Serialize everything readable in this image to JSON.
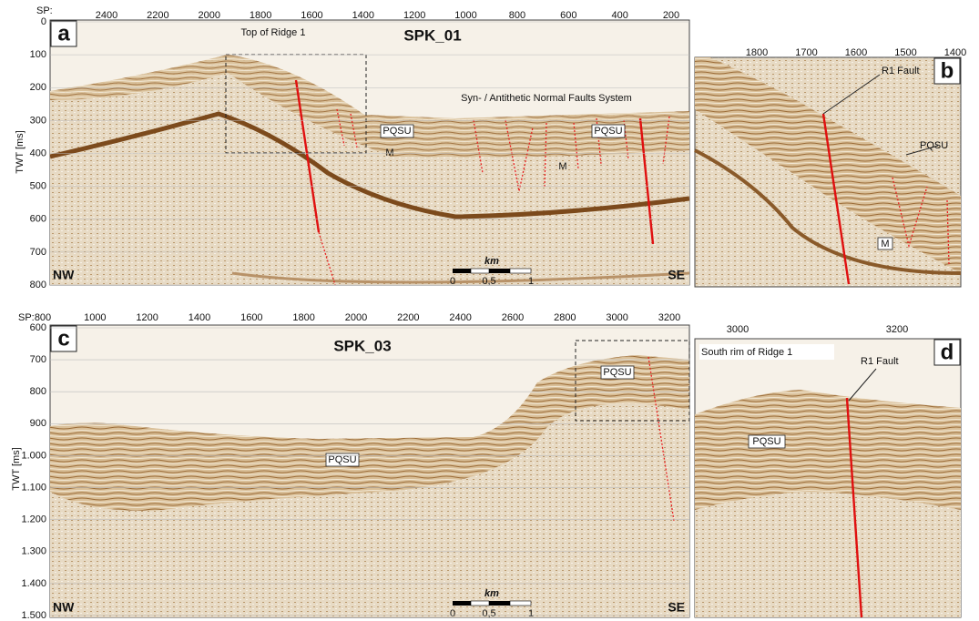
{
  "panels": [
    {
      "letter": "a",
      "title": "SPK_01",
      "sp_label": "SP:",
      "sp_ticks": [
        "2400",
        "2200",
        "2000",
        "1800",
        "1600",
        "1400",
        "1200",
        "1000",
        "800",
        "600",
        "400",
        "200"
      ],
      "twt_label": "TWT [ms]",
      "twt_ticks": [
        "0",
        "100",
        "200",
        "300",
        "400",
        "500",
        "600",
        "700",
        "800"
      ],
      "annotations": [
        "Top of Ridge 1",
        "Syn- / Antithetic Normal Faults System",
        "PQSU",
        "PQSU",
        "M",
        "M"
      ],
      "left_label": "NW",
      "right_label": "SE",
      "scale": {
        "unit": "km",
        "ticks": [
          "0",
          "0,5",
          "1"
        ]
      }
    },
    {
      "letter": "b",
      "sp_ticks": [
        "1800",
        "1700",
        "1600",
        "1500",
        "1400"
      ],
      "annotations": [
        "R1 Fault",
        "PQSU",
        "M"
      ]
    },
    {
      "letter": "c",
      "title": "SPK_03",
      "sp_label": "SP:",
      "sp_ticks": [
        "800",
        "1000",
        "1200",
        "1400",
        "1600",
        "1800",
        "2000",
        "2200",
        "2400",
        "2600",
        "2800",
        "3000",
        "3200"
      ],
      "twt_label": "TWT [ms]",
      "twt_ticks": [
        "600",
        "700",
        "800",
        "900",
        "1.000",
        "1.100",
        "1.200",
        "1.300",
        "1.400",
        "1.500"
      ],
      "annotations": [
        "PQSU",
        "PQSU"
      ],
      "left_label": "NW",
      "right_label": "SE",
      "scale": {
        "unit": "km",
        "ticks": [
          "0",
          "0,5",
          "1"
        ]
      }
    },
    {
      "letter": "d",
      "sp_ticks": [
        "3000",
        "3200"
      ],
      "annotations": [
        "South rim of Ridge 1",
        "R1 Fault",
        "PQSU"
      ]
    }
  ]
}
